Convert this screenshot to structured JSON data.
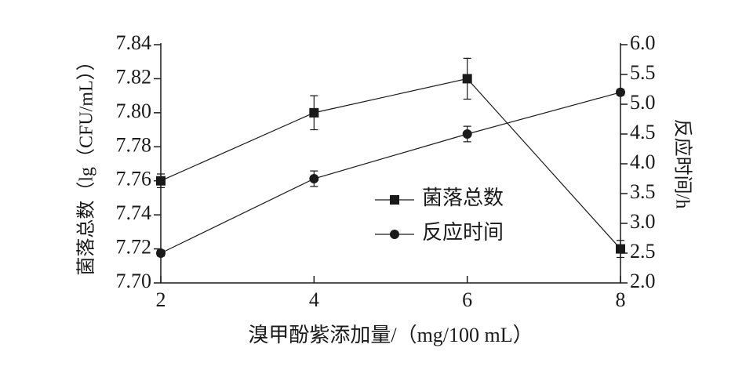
{
  "chart_data": {
    "type": "line",
    "x_label": "溴甲酚紫添加量/（mg/100 mL）",
    "y_label": "菌落总数（lg（CFU/mL））",
    "y2_label": "反应时间/h",
    "x": [
      2,
      4,
      6,
      8
    ],
    "xlim": [
      2,
      8
    ],
    "xticks": [
      2,
      4,
      6,
      8
    ],
    "ylim": [
      7.7,
      7.84
    ],
    "yticks": [
      {
        "value": 7.7,
        "label": "7.70"
      },
      7.72,
      7.74,
      7.76,
      7.78,
      {
        "value": 7.8,
        "label": "7.80"
      },
      7.82,
      7.84
    ],
    "y2lim": [
      2,
      6
    ],
    "y2ticks": [
      {
        "value": 2,
        "label": "2.0"
      },
      2.5,
      {
        "value": 3,
        "label": "3.0"
      },
      3.5,
      {
        "value": 4,
        "label": "4.0"
      },
      4.5,
      {
        "value": 5,
        "label": "5.0"
      },
      5.5,
      {
        "value": 6,
        "label": "6.0"
      }
    ],
    "series": [
      {
        "name": "菌落总数",
        "color": "#1a1a1a",
        "marker": "square",
        "values": [
          7.76,
          7.8,
          7.82,
          7.72
        ],
        "errors": [
          0.004,
          0.01,
          0.012,
          0.005
        ]
      },
      {
        "name": "反应时间",
        "color": "#1a1a1a",
        "marker": "circle",
        "axis": "y2",
        "values": [
          2.5,
          3.75,
          4.5,
          5.2
        ],
        "errors": [
          0.05,
          0.13,
          0.13,
          0.05
        ]
      }
    ]
  }
}
